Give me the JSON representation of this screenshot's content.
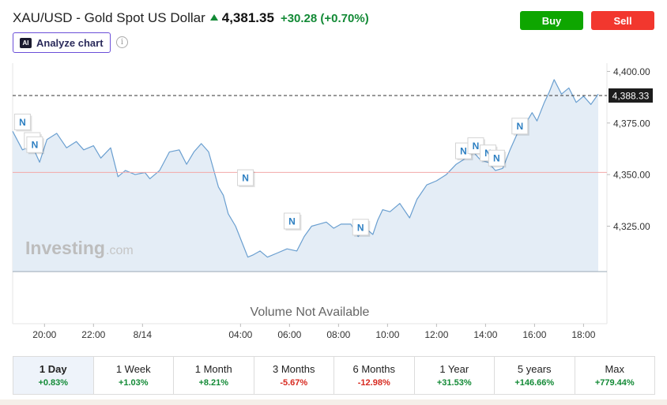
{
  "header": {
    "title": "XAU/USD - Gold Spot US Dollar",
    "price": "4,381.35",
    "change": "+30.28",
    "change_pct": "(+0.70%)"
  },
  "actions": {
    "buy_label": "Buy",
    "sell_label": "Sell"
  },
  "analyze": {
    "icon_text": "AI",
    "label": "Analyze chart"
  },
  "watermark": {
    "brand": "Investing",
    "suffix": ".com"
  },
  "volume_note": "Volume Not Available",
  "current_price_label": "4,388.33",
  "periods": [
    {
      "label": "1 Day",
      "value": "+0.83%",
      "dir": "pos",
      "active": true
    },
    {
      "label": "1 Week",
      "value": "+1.03%",
      "dir": "pos"
    },
    {
      "label": "1 Month",
      "value": "+8.21%",
      "dir": "pos"
    },
    {
      "label": "3 Months",
      "value": "-5.67%",
      "dir": "neg"
    },
    {
      "label": "6 Months",
      "value": "-12.98%",
      "dir": "neg"
    },
    {
      "label": "1 Year",
      "value": "+31.53%",
      "dir": "pos"
    },
    {
      "label": "5 years",
      "value": "+146.66%",
      "dir": "pos"
    },
    {
      "label": "Max",
      "value": "+779.44%",
      "dir": "pos"
    }
  ],
  "colors": {
    "line": "#6a9fd0",
    "fill": "#e4edf6",
    "up": "#138a36",
    "down": "#d7291f",
    "prev_close_line": "#f3a8a8"
  },
  "chart_data": {
    "type": "area",
    "y_ticks": [
      4400,
      4375,
      4350,
      4325
    ],
    "y_tick_labels": [
      "4,400.00",
      "4,375.00",
      "4,350.00",
      "4,325.00"
    ],
    "ylim": [
      4303,
      4404
    ],
    "x_ticks": [
      {
        "label": "20:00",
        "t": 1.5
      },
      {
        "label": "22:00",
        "t": 3.5
      },
      {
        "label": "8/14",
        "t": 5.5
      },
      {
        "label": "04:00",
        "t": 9.5
      },
      {
        "label": "06:00",
        "t": 11.5
      },
      {
        "label": "08:00",
        "t": 13.5
      },
      {
        "label": "10:00",
        "t": 15.5
      },
      {
        "label": "12:00",
        "t": 17.5
      },
      {
        "label": "14:00",
        "t": 19.5
      },
      {
        "label": "16:00",
        "t": 21.5
      },
      {
        "label": "18:00",
        "t": 23.5
      }
    ],
    "xlim": [
      0.2,
      24.1
    ],
    "current_price": 4388.33,
    "prev_close": 4351.07,
    "news_markers": [
      {
        "label": "N",
        "t": 0.6,
        "price": 4375.5
      },
      {
        "label": "N",
        "t": 1.0,
        "price": 4366.5
      },
      {
        "label": "N",
        "t": 1.1,
        "price": 4364.5
      },
      {
        "label": "N",
        "t": 9.7,
        "price": 4348.5
      },
      {
        "label": "N",
        "t": 11.6,
        "price": 4327.5
      },
      {
        "label": "N",
        "t": 14.4,
        "price": 4324.5
      },
      {
        "label": "N",
        "t": 18.6,
        "price": 4361.5
      },
      {
        "label": "N",
        "t": 19.1,
        "price": 4364.0
      },
      {
        "label": "N",
        "t": 19.6,
        "price": 4360.5
      },
      {
        "label": "N",
        "t": 19.95,
        "price": 4358.0
      },
      {
        "label": "N",
        "t": 20.9,
        "price": 4373.5
      }
    ],
    "series": [
      {
        "t": [
          0.2,
          0.6,
          1.0,
          1.3,
          1.6,
          2.0,
          2.4,
          2.8,
          3.1,
          3.5,
          3.8,
          4.2,
          4.5,
          4.8,
          5.2,
          5.6,
          5.8,
          6.2,
          6.6,
          7.0,
          7.3,
          7.6,
          7.9,
          8.2,
          8.6,
          8.8,
          9.0,
          9.3,
          9.6,
          9.8,
          10.0,
          10.3,
          10.6,
          11.0,
          11.4,
          11.8,
          12.1,
          12.4,
          12.7,
          13.0,
          13.3,
          13.6,
          14.0,
          14.3,
          14.6,
          14.9,
          15.1,
          15.3,
          15.6,
          16.0,
          16.4,
          16.7,
          17.1,
          17.5,
          17.9,
          18.3,
          18.7,
          19.0,
          19.3,
          19.6,
          19.9,
          20.2,
          20.5,
          20.8,
          21.1,
          21.4,
          21.6,
          21.9,
          22.1,
          22.3,
          22.6,
          22.9,
          23.2,
          23.5,
          23.8,
          24.1
        ],
        "values": [
          4371,
          4362,
          4364,
          4356,
          4367,
          4370,
          4363,
          4366,
          4362,
          4364,
          4358,
          4363,
          4349,
          4352,
          4350,
          4351,
          4348,
          4352,
          4361,
          4362,
          4355,
          4361,
          4365,
          4361,
          4344,
          4340,
          4331,
          4325,
          4316,
          4310,
          4311,
          4313,
          4310,
          4312,
          4314,
          4313,
          4320,
          4325,
          4326,
          4327,
          4324,
          4326,
          4326,
          4320,
          4324,
          4321,
          4328,
          4333,
          4332,
          4336,
          4329,
          4338,
          4345,
          4347,
          4350,
          4355,
          4358,
          4361,
          4357,
          4356,
          4352,
          4353,
          4362,
          4370,
          4374,
          4380,
          4376,
          4385,
          4390,
          4396,
          4389,
          4392,
          4385,
          4388,
          4384,
          4389
        ]
      }
    ]
  }
}
